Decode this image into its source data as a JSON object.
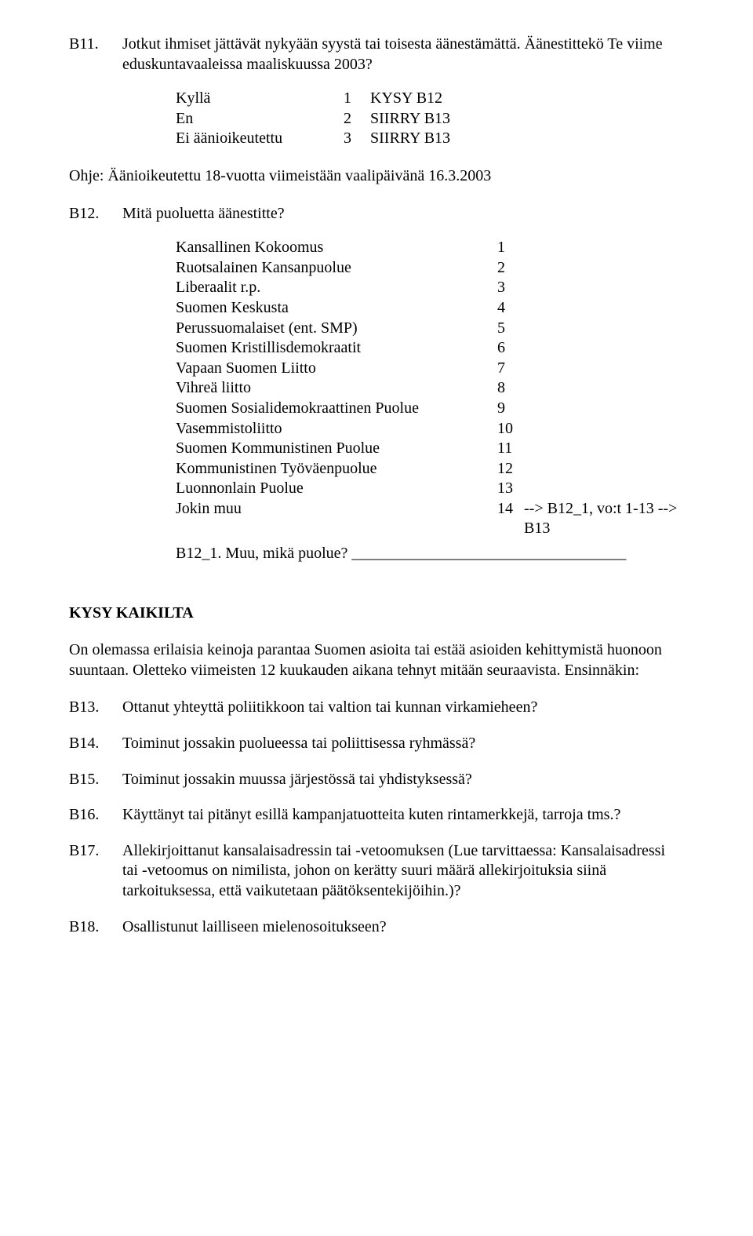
{
  "b11": {
    "code": "B11.",
    "text": "Jotkut ihmiset jättävät nykyään syystä tai toisesta äänestämättä. Äänestittekö Te viime eduskuntavaaleissa maaliskuussa 2003?",
    "opts": [
      {
        "label": "Kyllä",
        "val": "1",
        "note": "KYSY B12"
      },
      {
        "label": "En",
        "val": "2",
        "note": "SIIRRY B13"
      },
      {
        "label": "Ei äänioikeutettu",
        "val": "3",
        "note": "SIIRRY B13"
      }
    ]
  },
  "ohje": "Ohje: Äänioikeutettu 18-vuotta viimeistään vaalipäivänä 16.3.2003",
  "b12": {
    "code": "B12.",
    "text": "Mitä puoluetta äänestitte?",
    "opts": [
      {
        "label": "Kansallinen Kokoomus",
        "val": "1",
        "note": ""
      },
      {
        "label": "Ruotsalainen Kansanpuolue",
        "val": "2",
        "note": ""
      },
      {
        "label": "Liberaalit r.p.",
        "val": "3",
        "note": ""
      },
      {
        "label": "Suomen Keskusta",
        "val": "4",
        "note": ""
      },
      {
        "label": "Perussuomalaiset (ent. SMP)",
        "val": "5",
        "note": ""
      },
      {
        "label": "Suomen Kristillisdemokraatit",
        "val": "6",
        "note": ""
      },
      {
        "label": "Vapaan Suomen Liitto",
        "val": "7",
        "note": ""
      },
      {
        "label": "Vihreä liitto",
        "val": "8",
        "note": ""
      },
      {
        "label": "Suomen Sosialidemokraattinen Puolue",
        "val": "9",
        "note": ""
      },
      {
        "label": "Vasemmistoliitto",
        "val": "10",
        "note": ""
      },
      {
        "label": "Suomen Kommunistinen Puolue",
        "val": "11",
        "note": ""
      },
      {
        "label": "Kommunistinen Työväenpuolue",
        "val": "12",
        "note": ""
      },
      {
        "label": "Luonnonlain Puolue",
        "val": "13",
        "note": ""
      },
      {
        "label": "Jokin muu",
        "val": "14",
        "note": "--> B12_1, vo:t 1-13 --> B13"
      }
    ],
    "sub": "B12_1. Muu, mikä puolue? ___________________________________"
  },
  "kysy": "KYSY KAIKILTA",
  "intro": "On olemassa erilaisia keinoja parantaa Suomen asioita tai estää asioiden kehittymistä huonoon suuntaan. Oletteko viimeisten 12 kuukauden aikana tehnyt mitään seuraavista. Ensinnäkin:",
  "b13": {
    "code": "B13.",
    "text": "Ottanut yhteyttä poliitikkoon tai valtion tai kunnan virkamieheen?"
  },
  "b14": {
    "code": "B14.",
    "text": "Toiminut jossakin puolueessa tai poliittisessa ryhmässä?"
  },
  "b15": {
    "code": "B15.",
    "text": "Toiminut jossakin muussa järjestössä tai yhdistyksessä?"
  },
  "b16": {
    "code": "B16.",
    "text": "Käyttänyt tai pitänyt esillä kampanjatuotteita kuten rintamerkkejä, tarroja tms.?"
  },
  "b17": {
    "code": "B17.",
    "text": "Allekirjoittanut kansalaisadressin tai -vetoomuksen (Lue tarvittaessa: Kansalaisadressi tai -vetoomus on nimilista, johon on kerätty suuri määrä allekirjoituksia siinä tarkoituksessa, että vaikutetaan päätöksentekijöihin.)?"
  },
  "b18": {
    "code": "B18.",
    "text": "Osallistunut lailliseen mielenosoitukseen?"
  }
}
